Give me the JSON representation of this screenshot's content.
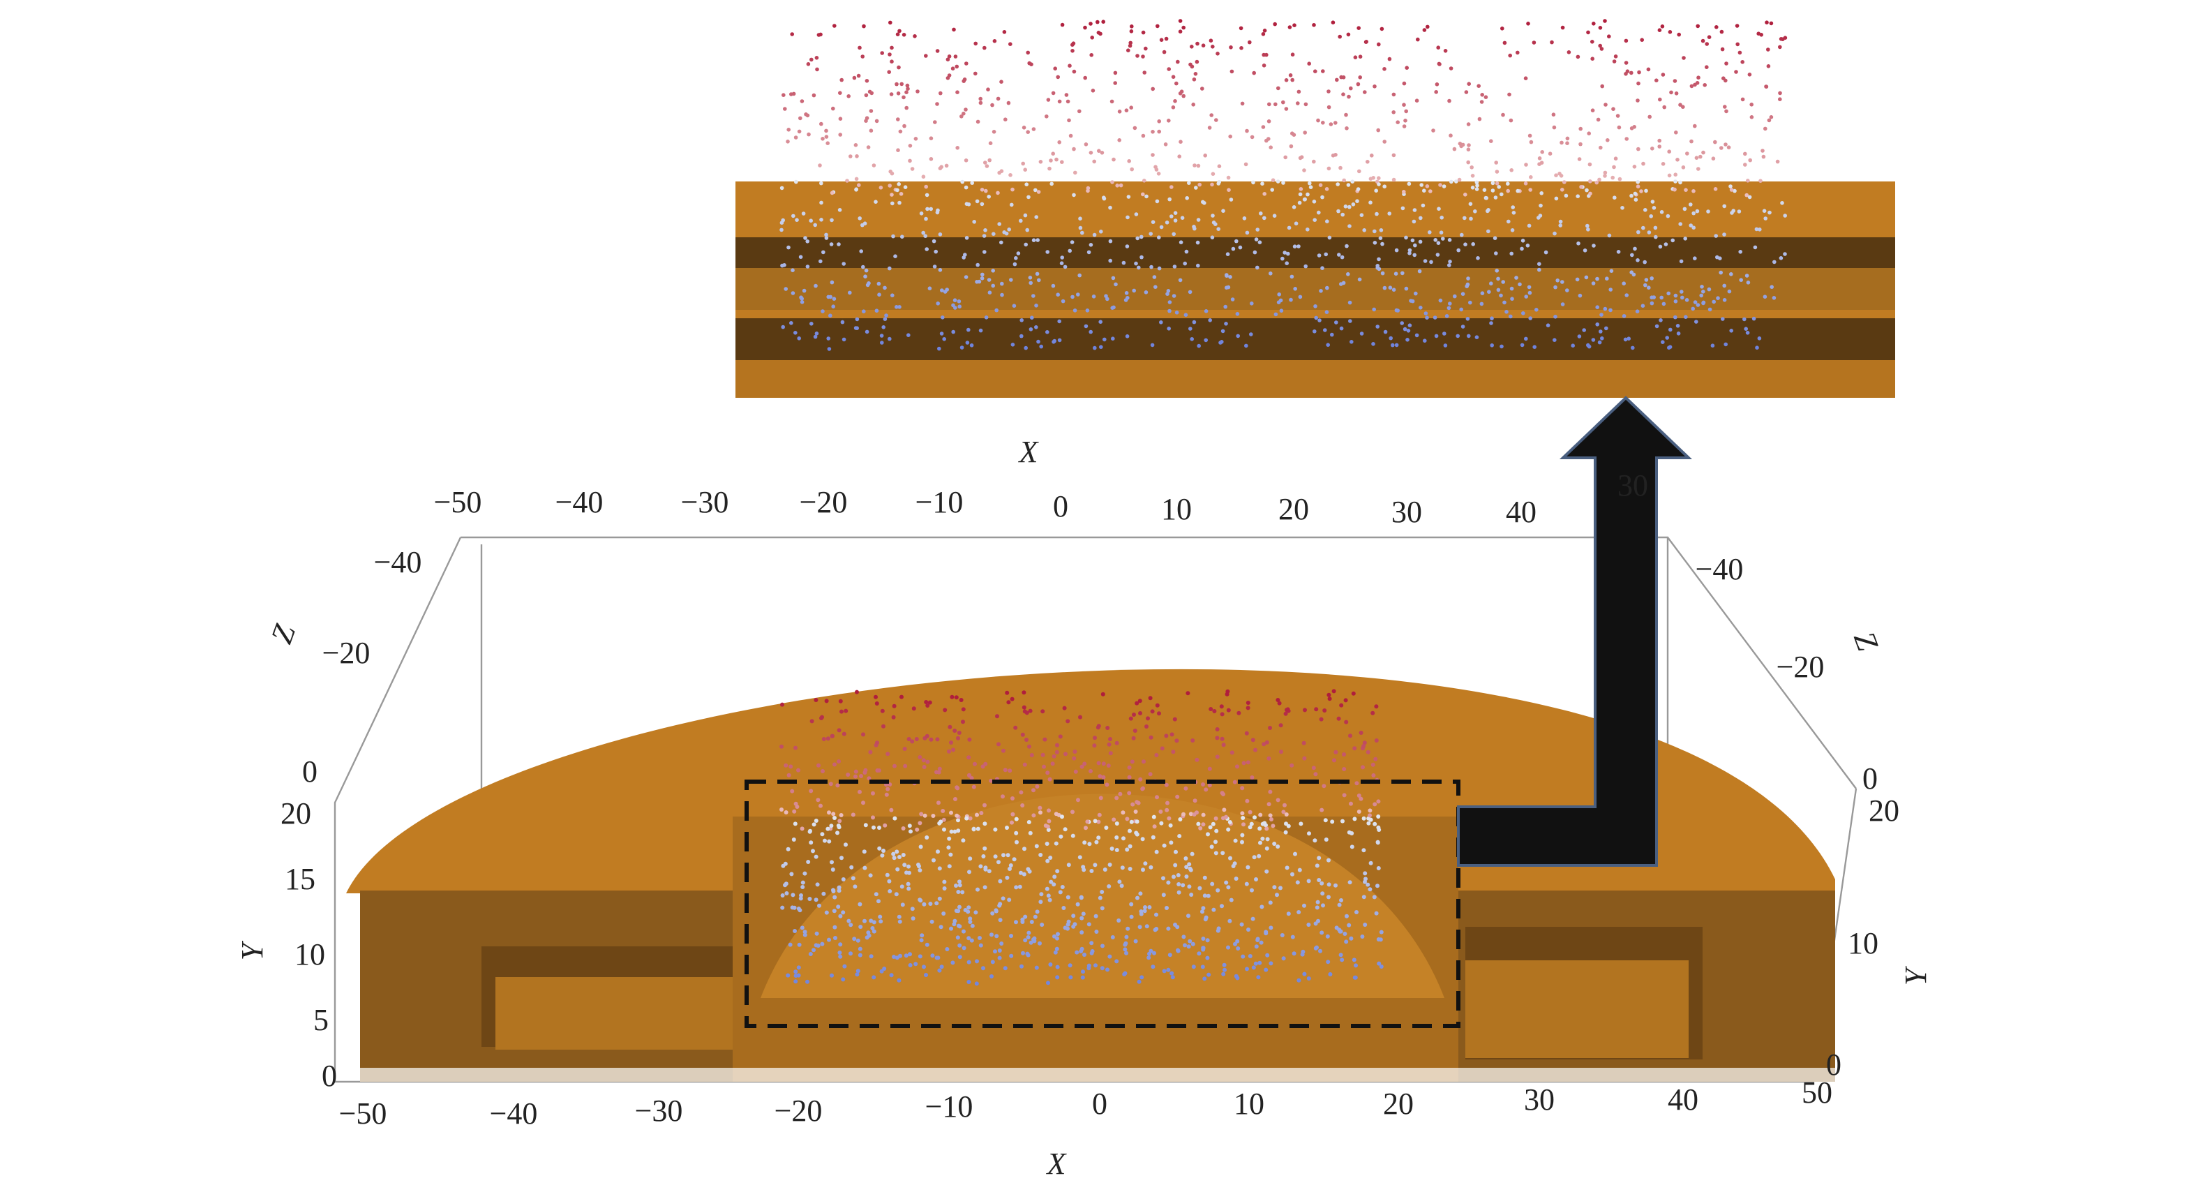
{
  "top_axis": {
    "title": "X",
    "ticks": [
      "−50",
      "−40",
      "−30",
      "−20",
      "−10",
      "0",
      "10",
      "20",
      "30",
      "40"
    ],
    "hidden_tick": "30"
  },
  "bottom_axis": {
    "title": "X",
    "ticks": [
      "−50",
      "−40",
      "−30",
      "−20",
      "−10",
      "0",
      "10",
      "20",
      "30",
      "40",
      "50"
    ]
  },
  "left_z_axis": {
    "title": "Z",
    "ticks": [
      "−40",
      "−20",
      "0"
    ]
  },
  "left_y_axis": {
    "title": "Y",
    "ticks": [
      "20",
      "15",
      "10",
      "5",
      "0"
    ]
  },
  "right_z_axis": {
    "title": "Z",
    "ticks": [
      "−40",
      "−20",
      "0"
    ]
  },
  "right_y_axis": {
    "title": "Y",
    "ticks": [
      "20",
      "10",
      "0"
    ]
  }
}
